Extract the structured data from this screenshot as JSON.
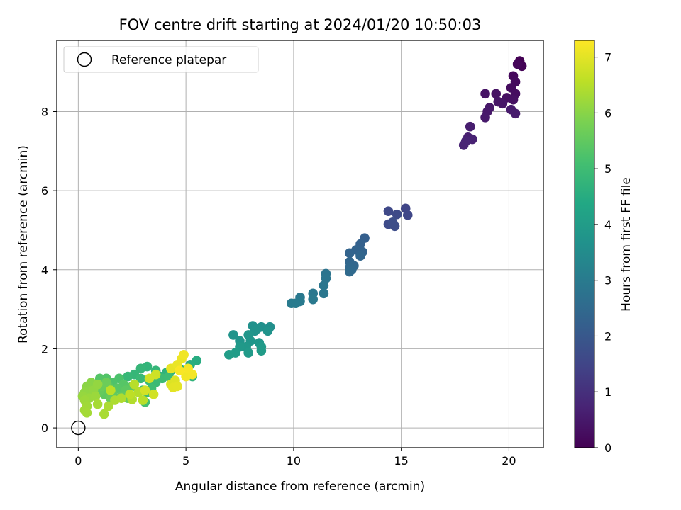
{
  "chart_data": {
    "type": "scatter",
    "title": "FOV centre drift starting at 2024/01/20 10:50:03",
    "xlabel": "Angular distance from reference (arcmin)",
    "ylabel": "Rotation from reference (arcmin)",
    "xlim": [
      -1,
      21.6
    ],
    "ylim": [
      -0.5,
      9.8
    ],
    "xticks": [
      0,
      5,
      10,
      15,
      20
    ],
    "yticks": [
      0,
      2,
      4,
      6,
      8
    ],
    "grid": true,
    "legend": {
      "position": "top-left",
      "entries": [
        "Reference platepar"
      ]
    },
    "reference_point": {
      "x": 0,
      "y": 0,
      "label": "Reference platepar"
    },
    "colorbar": {
      "label": "Hours from first FF file",
      "colormap": "viridis",
      "range": [
        0,
        7.3
      ],
      "ticks": [
        0,
        1,
        2,
        3,
        4,
        5,
        6,
        7
      ]
    },
    "points": [
      {
        "x": 20.5,
        "y": 9.28,
        "h": 0.0
      },
      {
        "x": 20.6,
        "y": 9.15,
        "h": 0.05
      },
      {
        "x": 20.4,
        "y": 9.2,
        "h": 0.1
      },
      {
        "x": 20.2,
        "y": 8.9,
        "h": 0.15
      },
      {
        "x": 20.3,
        "y": 8.75,
        "h": 0.2
      },
      {
        "x": 20.1,
        "y": 8.6,
        "h": 0.22
      },
      {
        "x": 20.3,
        "y": 8.45,
        "h": 0.25
      },
      {
        "x": 19.9,
        "y": 8.35,
        "h": 0.3
      },
      {
        "x": 20.2,
        "y": 8.3,
        "h": 0.32
      },
      {
        "x": 19.4,
        "y": 8.45,
        "h": 0.35
      },
      {
        "x": 18.9,
        "y": 8.45,
        "h": 0.38
      },
      {
        "x": 19.5,
        "y": 8.25,
        "h": 0.4
      },
      {
        "x": 19.7,
        "y": 8.2,
        "h": 0.42
      },
      {
        "x": 19.1,
        "y": 8.1,
        "h": 0.45
      },
      {
        "x": 19.0,
        "y": 8.0,
        "h": 0.48
      },
      {
        "x": 18.9,
        "y": 7.85,
        "h": 0.5
      },
      {
        "x": 20.1,
        "y": 8.05,
        "h": 0.52
      },
      {
        "x": 20.3,
        "y": 7.95,
        "h": 0.55
      },
      {
        "x": 18.2,
        "y": 7.62,
        "h": 0.6
      },
      {
        "x": 18.1,
        "y": 7.35,
        "h": 0.65
      },
      {
        "x": 18.3,
        "y": 7.3,
        "h": 0.68
      },
      {
        "x": 17.9,
        "y": 7.15,
        "h": 0.7
      },
      {
        "x": 18.0,
        "y": 7.25,
        "h": 0.72
      },
      {
        "x": 15.2,
        "y": 5.55,
        "h": 1.5
      },
      {
        "x": 15.3,
        "y": 5.38,
        "h": 1.55
      },
      {
        "x": 14.4,
        "y": 5.48,
        "h": 1.6
      },
      {
        "x": 14.8,
        "y": 5.4,
        "h": 1.62
      },
      {
        "x": 14.4,
        "y": 5.15,
        "h": 1.65
      },
      {
        "x": 14.7,
        "y": 5.1,
        "h": 1.7
      },
      {
        "x": 14.6,
        "y": 5.2,
        "h": 1.72
      },
      {
        "x": 13.3,
        "y": 4.8,
        "h": 2.2
      },
      {
        "x": 13.1,
        "y": 4.65,
        "h": 2.25
      },
      {
        "x": 13.2,
        "y": 4.45,
        "h": 2.3
      },
      {
        "x": 12.9,
        "y": 4.5,
        "h": 2.32
      },
      {
        "x": 12.6,
        "y": 4.42,
        "h": 2.35
      },
      {
        "x": 13.1,
        "y": 4.35,
        "h": 2.38
      },
      {
        "x": 12.6,
        "y": 4.2,
        "h": 2.4
      },
      {
        "x": 12.8,
        "y": 4.1,
        "h": 2.42
      },
      {
        "x": 12.6,
        "y": 4.05,
        "h": 2.45
      },
      {
        "x": 12.7,
        "y": 4.0,
        "h": 2.48
      },
      {
        "x": 12.6,
        "y": 3.95,
        "h": 2.5
      },
      {
        "x": 11.5,
        "y": 3.9,
        "h": 2.8
      },
      {
        "x": 11.5,
        "y": 3.78,
        "h": 2.82
      },
      {
        "x": 11.4,
        "y": 3.6,
        "h": 2.85
      },
      {
        "x": 11.4,
        "y": 3.4,
        "h": 2.88
      },
      {
        "x": 10.9,
        "y": 3.4,
        "h": 2.9
      },
      {
        "x": 10.3,
        "y": 3.3,
        "h": 2.92
      },
      {
        "x": 10.9,
        "y": 3.25,
        "h": 2.95
      },
      {
        "x": 10.3,
        "y": 3.2,
        "h": 2.98
      },
      {
        "x": 9.9,
        "y": 3.15,
        "h": 3.0
      },
      {
        "x": 10.1,
        "y": 3.15,
        "h": 3.02
      },
      {
        "x": 8.9,
        "y": 2.55,
        "h": 3.6
      },
      {
        "x": 8.5,
        "y": 2.55,
        "h": 3.62
      },
      {
        "x": 8.1,
        "y": 2.58,
        "h": 3.65
      },
      {
        "x": 8.3,
        "y": 2.5,
        "h": 3.68
      },
      {
        "x": 8.8,
        "y": 2.45,
        "h": 3.7
      },
      {
        "x": 8.2,
        "y": 2.45,
        "h": 3.72
      },
      {
        "x": 7.2,
        "y": 2.35,
        "h": 3.75
      },
      {
        "x": 7.5,
        "y": 2.2,
        "h": 3.78
      },
      {
        "x": 7.9,
        "y": 2.35,
        "h": 3.8
      },
      {
        "x": 8.0,
        "y": 2.2,
        "h": 3.82
      },
      {
        "x": 8.4,
        "y": 2.15,
        "h": 3.85
      },
      {
        "x": 7.8,
        "y": 2.05,
        "h": 3.88
      },
      {
        "x": 7.5,
        "y": 2.05,
        "h": 3.9
      },
      {
        "x": 8.5,
        "y": 2.05,
        "h": 3.92
      },
      {
        "x": 7.9,
        "y": 1.9,
        "h": 3.95
      },
      {
        "x": 8.5,
        "y": 1.95,
        "h": 3.98
      },
      {
        "x": 7.3,
        "y": 1.9,
        "h": 4.0
      },
      {
        "x": 7.0,
        "y": 1.85,
        "h": 4.02
      },
      {
        "x": 5.5,
        "y": 1.7,
        "h": 4.5
      },
      {
        "x": 5.2,
        "y": 1.6,
        "h": 4.55
      },
      {
        "x": 4.7,
        "y": 1.5,
        "h": 4.6
      },
      {
        "x": 4.3,
        "y": 1.45,
        "h": 4.65
      },
      {
        "x": 4.1,
        "y": 1.4,
        "h": 4.68
      },
      {
        "x": 5.3,
        "y": 1.3,
        "h": 4.7
      },
      {
        "x": 3.8,
        "y": 1.3,
        "h": 4.72
      },
      {
        "x": 3.2,
        "y": 1.55,
        "h": 4.75
      },
      {
        "x": 3.6,
        "y": 1.45,
        "h": 4.78
      },
      {
        "x": 2.9,
        "y": 1.5,
        "h": 4.8
      },
      {
        "x": 2.6,
        "y": 1.35,
        "h": 4.82
      },
      {
        "x": 2.3,
        "y": 1.3,
        "h": 4.85
      },
      {
        "x": 3.3,
        "y": 1.2,
        "h": 4.88
      },
      {
        "x": 2.9,
        "y": 1.25,
        "h": 4.9
      },
      {
        "x": 3.6,
        "y": 1.15,
        "h": 4.92
      },
      {
        "x": 3.9,
        "y": 1.25,
        "h": 4.95
      },
      {
        "x": 4.2,
        "y": 1.3,
        "h": 4.98
      },
      {
        "x": 3.4,
        "y": 1.0,
        "h": 5.0
      },
      {
        "x": 3.2,
        "y": 0.9,
        "h": 5.02
      },
      {
        "x": 3.0,
        "y": 0.95,
        "h": 5.05
      },
      {
        "x": 3.1,
        "y": 0.65,
        "h": 5.08
      },
      {
        "x": 1.9,
        "y": 1.25,
        "h": 5.2
      },
      {
        "x": 1.6,
        "y": 1.15,
        "h": 5.25
      },
      {
        "x": 1.3,
        "y": 1.25,
        "h": 5.3
      },
      {
        "x": 1.0,
        "y": 1.25,
        "h": 5.32
      },
      {
        "x": 2.1,
        "y": 1.1,
        "h": 5.35
      },
      {
        "x": 1.8,
        "y": 1.0,
        "h": 5.38
      },
      {
        "x": 1.4,
        "y": 1.05,
        "h": 5.4
      },
      {
        "x": 2.5,
        "y": 1.05,
        "h": 5.42
      },
      {
        "x": 2.2,
        "y": 0.95,
        "h": 5.45
      },
      {
        "x": 1.2,
        "y": 0.85,
        "h": 5.48
      },
      {
        "x": 1.6,
        "y": 0.85,
        "h": 5.5
      },
      {
        "x": 2.0,
        "y": 0.8,
        "h": 5.52
      },
      {
        "x": 1.0,
        "y": 0.95,
        "h": 5.55
      },
      {
        "x": 1.5,
        "y": 0.75,
        "h": 5.58
      },
      {
        "x": 2.3,
        "y": 0.75,
        "h": 5.6
      },
      {
        "x": 1.1,
        "y": 1.05,
        "h": 5.62
      },
      {
        "x": 1.3,
        "y": 1.15,
        "h": 5.65
      },
      {
        "x": 0.6,
        "y": 1.15,
        "h": 6.0
      },
      {
        "x": 0.4,
        "y": 1.05,
        "h": 6.02
      },
      {
        "x": 0.5,
        "y": 0.95,
        "h": 6.05
      },
      {
        "x": 0.3,
        "y": 0.9,
        "h": 6.08
      },
      {
        "x": 0.7,
        "y": 0.95,
        "h": 6.1
      },
      {
        "x": 0.9,
        "y": 1.1,
        "h": 6.12
      },
      {
        "x": 0.2,
        "y": 0.8,
        "h": 6.15
      },
      {
        "x": 0.5,
        "y": 0.75,
        "h": 6.18
      },
      {
        "x": 0.8,
        "y": 0.8,
        "h": 6.2
      },
      {
        "x": 0.3,
        "y": 0.7,
        "h": 6.22
      },
      {
        "x": 0.4,
        "y": 0.55,
        "h": 6.25
      },
      {
        "x": 0.3,
        "y": 0.45,
        "h": 6.28
      },
      {
        "x": 0.4,
        "y": 0.38,
        "h": 6.3
      },
      {
        "x": 0.9,
        "y": 0.6,
        "h": 6.32
      },
      {
        "x": 1.2,
        "y": 0.35,
        "h": 6.35
      },
      {
        "x": 1.4,
        "y": 0.55,
        "h": 6.38
      },
      {
        "x": 1.7,
        "y": 0.7,
        "h": 6.4
      },
      {
        "x": 2.0,
        "y": 0.75,
        "h": 6.42
      },
      {
        "x": 2.5,
        "y": 0.72,
        "h": 6.45
      },
      {
        "x": 2.8,
        "y": 0.9,
        "h": 6.48
      },
      {
        "x": 2.6,
        "y": 1.1,
        "h": 6.5
      },
      {
        "x": 3.0,
        "y": 0.7,
        "h": 6.52
      },
      {
        "x": 1.5,
        "y": 0.95,
        "h": 6.55
      },
      {
        "x": 2.4,
        "y": 0.85,
        "h": 6.58
      },
      {
        "x": 3.6,
        "y": 1.35,
        "h": 6.75
      },
      {
        "x": 3.3,
        "y": 1.25,
        "h": 6.78
      },
      {
        "x": 3.5,
        "y": 0.85,
        "h": 6.8
      },
      {
        "x": 3.1,
        "y": 0.95,
        "h": 6.82
      },
      {
        "x": 4.3,
        "y": 1.1,
        "h": 6.9
      },
      {
        "x": 4.5,
        "y": 1.2,
        "h": 6.95
      },
      {
        "x": 4.4,
        "y": 1.02,
        "h": 7.0
      },
      {
        "x": 4.6,
        "y": 1.05,
        "h": 7.02
      },
      {
        "x": 4.3,
        "y": 1.5,
        "h": 7.05
      },
      {
        "x": 4.6,
        "y": 1.6,
        "h": 7.08
      },
      {
        "x": 4.8,
        "y": 1.75,
        "h": 7.1
      },
      {
        "x": 4.9,
        "y": 1.85,
        "h": 7.15
      },
      {
        "x": 5.0,
        "y": 1.3,
        "h": 7.18
      },
      {
        "x": 5.3,
        "y": 1.35,
        "h": 7.2
      },
      {
        "x": 5.1,
        "y": 1.5,
        "h": 7.22
      },
      {
        "x": 4.7,
        "y": 1.45,
        "h": 7.25
      }
    ]
  }
}
